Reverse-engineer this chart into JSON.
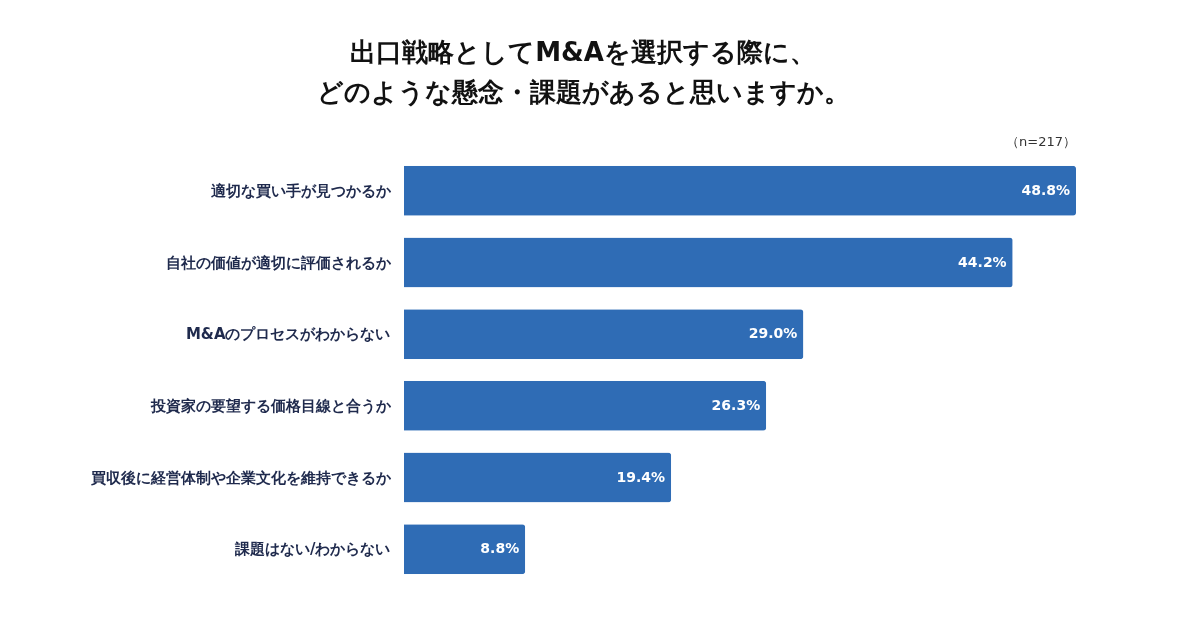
{
  "chart_data": {
    "type": "bar",
    "orientation": "horizontal",
    "title": [
      "出口戦略としてM&Aを選択する際に、",
      "どのような懸念・課題があると思いますか。"
    ],
    "annotations": [
      "（n=217）"
    ],
    "categories": [
      "適切な買い手が見つかるか",
      "自社の価値が適切に評価されるか",
      "M&Aのプロセスがわからない",
      "投資家の要望する価格目線と合うか",
      "買収後に経営体制や企業文化を維持できるか",
      "課題はない/わからない"
    ],
    "values": [
      48.8,
      44.2,
      29.0,
      26.3,
      19.4,
      8.8
    ],
    "value_labels": [
      "48.8%",
      "44.2%",
      "29.0%",
      "26.3%",
      "19.4%",
      "8.8%"
    ],
    "color": "#2f6cb5"
  }
}
